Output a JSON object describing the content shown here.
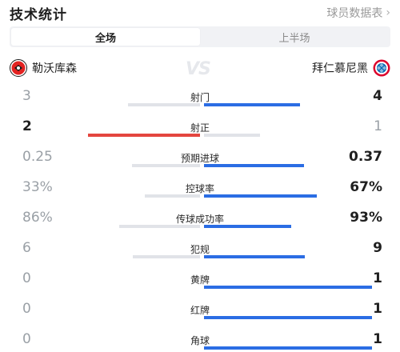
{
  "header": {
    "title": "技术统计",
    "link_label": "球员数据表"
  },
  "tabs": [
    {
      "label": "全场",
      "active": true
    },
    {
      "label": "上半场",
      "active": false
    }
  ],
  "teams": {
    "home": {
      "name": "勒沃库森",
      "logo_icon": "leverkusen-crest-icon",
      "color": "#e32221"
    },
    "away": {
      "name": "拜仁慕尼黑",
      "logo_icon": "bayern-crest-icon",
      "color": "#dc052d"
    },
    "vs_text": "VS"
  },
  "colors": {
    "blue": "#2b6de4",
    "red": "#e4463f",
    "grey": "#e1e3e8"
  },
  "stats": [
    {
      "label": "射门",
      "home": "3",
      "away": "4",
      "home_val": 3,
      "away_val": 4,
      "leader": "away"
    },
    {
      "label": "射正",
      "home": "2",
      "away": "1",
      "home_val": 2,
      "away_val": 1,
      "leader": "home"
    },
    {
      "label": "预期进球",
      "home": "0.25",
      "away": "0.37",
      "home_val": 0.25,
      "away_val": 0.37,
      "leader": "away"
    },
    {
      "label": "控球率",
      "home": "33%",
      "away": "67%",
      "home_val": 33,
      "away_val": 67,
      "leader": "away"
    },
    {
      "label": "传球成功率",
      "home": "86%",
      "away": "93%",
      "home_val": 86,
      "away_val": 93,
      "leader": "away"
    },
    {
      "label": "犯规",
      "home": "6",
      "away": "9",
      "home_val": 6,
      "away_val": 9,
      "leader": "away"
    },
    {
      "label": "黄牌",
      "home": "0",
      "away": "1",
      "home_val": 0,
      "away_val": 1,
      "leader": "away"
    },
    {
      "label": "红牌",
      "home": "0",
      "away": "1",
      "home_val": 0,
      "away_val": 1,
      "leader": "away"
    },
    {
      "label": "角球",
      "home": "0",
      "away": "1",
      "home_val": 0,
      "away_val": 1,
      "leader": "away"
    }
  ]
}
